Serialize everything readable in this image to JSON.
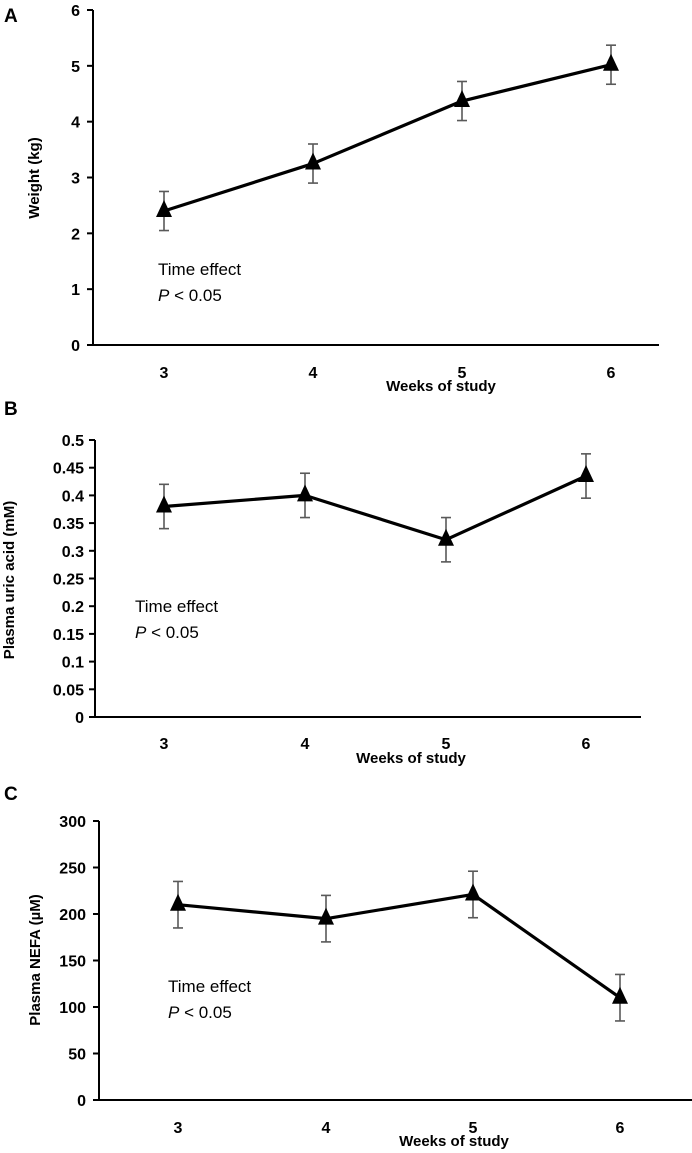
{
  "chart_data": [
    {
      "type": "line",
      "panel": "A",
      "categories": [
        "3",
        "4",
        "5",
        "6"
      ],
      "values": [
        2.4,
        3.25,
        4.37,
        5.02
      ],
      "errors": [
        0.35,
        0.35,
        0.35,
        0.35
      ],
      "xlabel": "Weeks of study",
      "ylabel": "Weight (kg)",
      "ylim": [
        0,
        6
      ],
      "yticks": [
        "0",
        "1",
        "2",
        "3",
        "4",
        "5",
        "6"
      ],
      "marker": "triangle",
      "annotation": {
        "line1": "Time effect",
        "p_label": "P",
        "p_text": " < 0.05"
      }
    },
    {
      "type": "line",
      "panel": "B",
      "categories": [
        "3",
        "4",
        "5",
        "6"
      ],
      "values": [
        0.38,
        0.4,
        0.32,
        0.435
      ],
      "errors": [
        0.04,
        0.04,
        0.04,
        0.04
      ],
      "xlabel": "Weeks of study",
      "ylabel": "Plasma uric acid (mM)",
      "ylim": [
        0,
        0.5
      ],
      "yticks": [
        "0",
        "0.05",
        "0.1",
        "0.15",
        "0.2",
        "0.25",
        "0.3",
        "0.35",
        "0.4",
        "0.45",
        "0.5"
      ],
      "marker": "triangle",
      "annotation": {
        "line1": "Time effect",
        "p_label": "P",
        "p_text": " < 0.05"
      }
    },
    {
      "type": "line",
      "panel": "C",
      "categories": [
        "3",
        "4",
        "5",
        "6"
      ],
      "values": [
        210,
        195,
        221,
        110
      ],
      "errors": [
        25,
        25,
        25,
        25
      ],
      "xlabel": "Weeks of study",
      "ylabel": "Plasma NEFA (µM)",
      "ylim": [
        0,
        300
      ],
      "yticks": [
        "0",
        "50",
        "100",
        "150",
        "200",
        "250",
        "300"
      ],
      "marker": "triangle",
      "annotation": {
        "line1": "Time effect",
        "p_label": "P",
        "p_text": " < 0.05"
      }
    }
  ],
  "colors": {
    "line": "#000000",
    "axis": "#000000",
    "error_bar": "#595959"
  }
}
